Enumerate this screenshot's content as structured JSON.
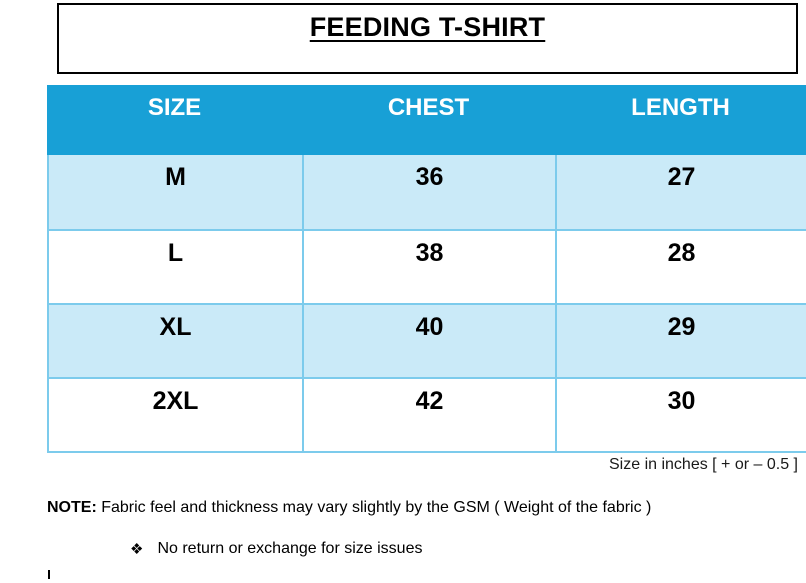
{
  "title": "FEEDING T-SHIRT",
  "table": {
    "headers": [
      "SIZE",
      "CHEST",
      "LENGTH"
    ],
    "rows": [
      [
        "M",
        "36",
        "27"
      ],
      [
        "L",
        "38",
        "28"
      ],
      [
        "XL",
        "40",
        "29"
      ],
      [
        "2XL",
        "42",
        "30"
      ]
    ]
  },
  "caption": "Size in inches [ + or – 0.5 ]",
  "note": {
    "label": "NOTE:",
    "text": " Fabric feel and thickness may vary slightly by the GSM ( Weight of the fabric )"
  },
  "bullet": {
    "icon": "❖",
    "text": "No return or exchange for size issues"
  },
  "colors": {
    "header_bg": "#18A0D6",
    "header_text": "#FFFFFF",
    "row_alt_bg": "#CAEAF8",
    "row_plain_bg": "#FFFFFF",
    "cell_border": "#7CCBEC",
    "title_border": "#000000",
    "text": "#000000"
  },
  "chart_data": {
    "type": "table",
    "title": "FEEDING T-SHIRT",
    "columns": [
      "SIZE",
      "CHEST",
      "LENGTH"
    ],
    "rows": [
      [
        "M",
        36,
        27
      ],
      [
        "L",
        38,
        28
      ],
      [
        "XL",
        40,
        29
      ],
      [
        "2XL",
        42,
        30
      ]
    ],
    "units": "inches",
    "tolerance": "+ or – 0.5",
    "notes": [
      "Fabric feel and thickness may vary slightly by the GSM ( Weight of the fabric )",
      "No return or exchange for size issues"
    ]
  }
}
